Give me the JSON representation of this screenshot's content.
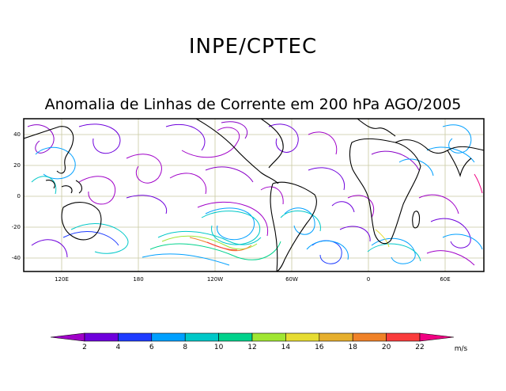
{
  "header": {
    "title": "INPE/CPTEC",
    "subtitle": "Anomalia de Linhas de Corrente em 200 hPa AGO/2005"
  },
  "map": {
    "lon_ticks": [
      "120E",
      "180",
      "120W",
      "60W",
      "0",
      "60E"
    ],
    "lat_ticks": [
      "40",
      "20",
      "0",
      "-20",
      "-40"
    ],
    "grid_color": "#c8c8a0",
    "land_color": "#000000"
  },
  "colorbar": {
    "labels": [
      "2",
      "4",
      "6",
      "8",
      "10",
      "12",
      "14",
      "16",
      "18",
      "20",
      "22"
    ],
    "units": "m/s",
    "colors": [
      "#a000c8",
      "#6e00dc",
      "#1e3cff",
      "#00a0ff",
      "#00c8c8",
      "#00d28c",
      "#a0e632",
      "#e6dc32",
      "#e6af2d",
      "#f08228",
      "#fa3c3c",
      "#f00082"
    ]
  }
}
